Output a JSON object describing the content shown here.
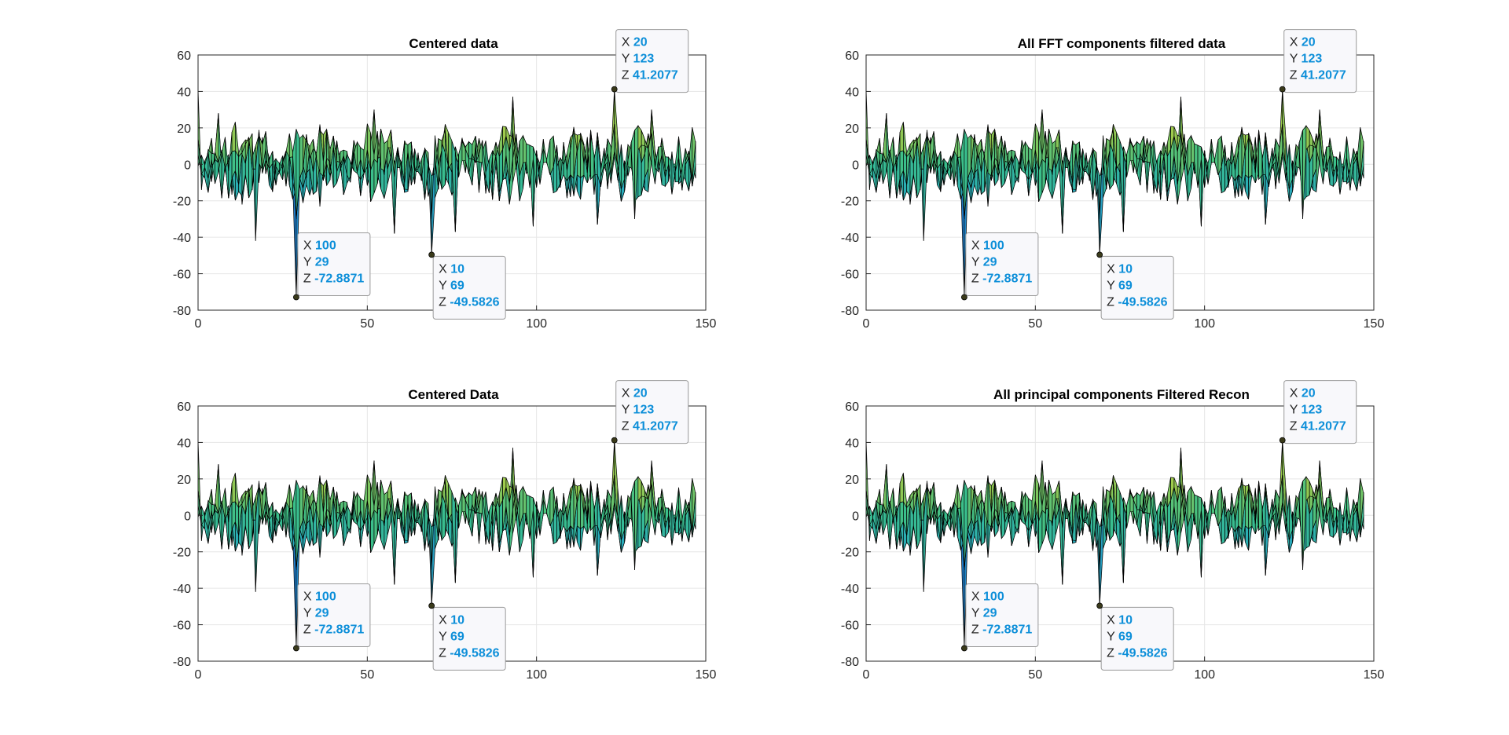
{
  "chart_data": [
    {
      "type": "surface",
      "title": "Centered data",
      "xticks": [
        "0",
        "50",
        "100",
        "150"
      ],
      "yticks": [
        "60",
        "40",
        "20",
        "0",
        "-20",
        "-40",
        "-60",
        "-80"
      ],
      "xlim": [
        0,
        150
      ],
      "ylim": [
        -80,
        60
      ],
      "grid": true,
      "colormap": "parula",
      "datatips": [
        {
          "x": "20",
          "y": "123",
          "z": "41.2077",
          "ax": 123,
          "az": 41.2077,
          "place": "upright"
        },
        {
          "x": "100",
          "y": "29",
          "z": "-72.8871",
          "ax": 29,
          "az": -72.8871,
          "place": "upright"
        },
        {
          "x": "10",
          "y": "69",
          "z": "-49.5826",
          "ax": 69,
          "az": -49.5826,
          "place": "downright"
        }
      ]
    },
    {
      "type": "surface",
      "title": "All FFT components filtered data",
      "xticks": [
        "0",
        "50",
        "100",
        "150"
      ],
      "yticks": [
        "60",
        "40",
        "20",
        "0",
        "-20",
        "-40",
        "-60",
        "-80"
      ],
      "xlim": [
        0,
        150
      ],
      "ylim": [
        -80,
        60
      ],
      "grid": true,
      "colormap": "parula",
      "datatips": [
        {
          "x": "20",
          "y": "123",
          "z": "41.2077",
          "ax": 123,
          "az": 41.2077,
          "place": "upright"
        },
        {
          "x": "100",
          "y": "29",
          "z": "-72.8871",
          "ax": 29,
          "az": -72.8871,
          "place": "upright"
        },
        {
          "x": "10",
          "y": "69",
          "z": "-49.5826",
          "ax": 69,
          "az": -49.5826,
          "place": "downright"
        }
      ]
    },
    {
      "type": "surface",
      "title": "Centered Data",
      "xticks": [
        "0",
        "50",
        "100",
        "150"
      ],
      "yticks": [
        "60",
        "40",
        "20",
        "0",
        "-20",
        "-40",
        "-60",
        "-80"
      ],
      "xlim": [
        0,
        150
      ],
      "ylim": [
        -80,
        60
      ],
      "grid": true,
      "colormap": "parula",
      "datatips": [
        {
          "x": "20",
          "y": "123",
          "z": "41.2077",
          "ax": 123,
          "az": 41.2077,
          "place": "upright"
        },
        {
          "x": "100",
          "y": "29",
          "z": "-72.8871",
          "ax": 29,
          "az": -72.8871,
          "place": "upright"
        },
        {
          "x": "10",
          "y": "69",
          "z": "-49.5826",
          "ax": 69,
          "az": -49.5826,
          "place": "downright"
        }
      ]
    },
    {
      "type": "surface",
      "title": "All principal components Filtered Recon",
      "xticks": [
        "0",
        "50",
        "100",
        "150"
      ],
      "yticks": [
        "60",
        "40",
        "20",
        "0",
        "-20",
        "-40",
        "-60",
        "-80"
      ],
      "xlim": [
        0,
        150
      ],
      "ylim": [
        -80,
        60
      ],
      "grid": true,
      "colormap": "parula",
      "datatips": [
        {
          "x": "20",
          "y": "123",
          "z": "41.2077",
          "ax": 123,
          "az": 41.2077,
          "place": "upright"
        },
        {
          "x": "100",
          "y": "29",
          "z": "-72.8871",
          "ax": 29,
          "az": -72.8871,
          "place": "upright"
        },
        {
          "x": "10",
          "y": "69",
          "z": "-49.5826",
          "ax": 69,
          "az": -49.5826,
          "place": "downright"
        }
      ]
    }
  ],
  "colors": {
    "axis": "#262626",
    "grid": "#e6e6e6",
    "datatip_value": "#0d8fd9",
    "surface_high": "#f9e52c",
    "surface_mid": "#3bbf8a",
    "surface_low": "#1f78c8",
    "edge": "#000000"
  }
}
